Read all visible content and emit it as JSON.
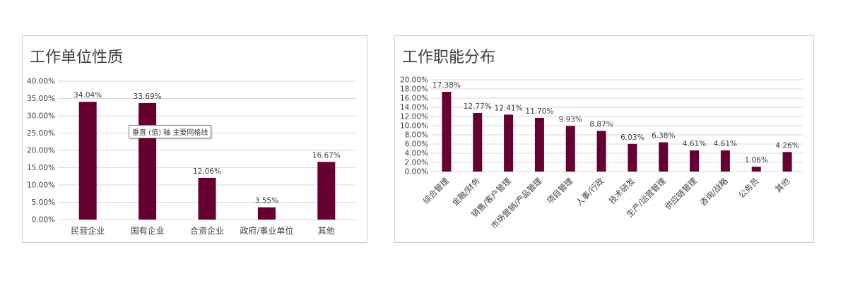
{
  "colors": {
    "bar": "#660033",
    "grid": "#d9d9d9",
    "text": "#404040"
  },
  "tooltip": "垂直 (值) 轴 主要网格线",
  "chart_data": [
    {
      "type": "bar",
      "title": "工作单位性质",
      "categories": [
        "民营企业",
        "国有企业",
        "合资企业",
        "政府/事业单位",
        "其他"
      ],
      "values": [
        34.04,
        33.69,
        12.06,
        3.55,
        16.67
      ],
      "value_labels": [
        "34.04%",
        "33.69%",
        "12.06%",
        "3.55%",
        "16.67%"
      ],
      "yticks": [
        "0.00%",
        "5.00%",
        "10.00%",
        "15.00%",
        "20.00%",
        "25.00%",
        "30.00%",
        "35.00%",
        "40.00%"
      ],
      "ylim": [
        0,
        40
      ],
      "grid": true,
      "xlabel": "",
      "ylabel": ""
    },
    {
      "type": "bar",
      "title": "工作职能分布",
      "categories": [
        "综合管理",
        "金融/财务",
        "销售/客户管理",
        "市场营销/产品管理",
        "项目管理",
        "人事/行政",
        "技术研发",
        "生产/运营管理",
        "供应链管理",
        "咨询/战略",
        "公务员",
        "其他"
      ],
      "values": [
        17.38,
        12.77,
        12.41,
        11.7,
        9.93,
        8.87,
        6.03,
        6.38,
        4.61,
        4.61,
        1.06,
        4.26
      ],
      "value_labels": [
        "17.38%",
        "12.77%",
        "12.41%",
        "11.70%",
        "9.93%",
        "8.87%",
        "6.03%",
        "6.38%",
        "4.61%",
        "4.61%",
        "1.06%",
        "4.26%"
      ],
      "yticks": [
        "0.00%",
        "2.00%",
        "4.00%",
        "6.00%",
        "8.00%",
        "10.00%",
        "12.00%",
        "14.00%",
        "16.00%",
        "18.00%",
        "20.00%"
      ],
      "ylim": [
        0,
        20
      ],
      "grid": true,
      "xlabel": "",
      "ylabel": ""
    }
  ]
}
